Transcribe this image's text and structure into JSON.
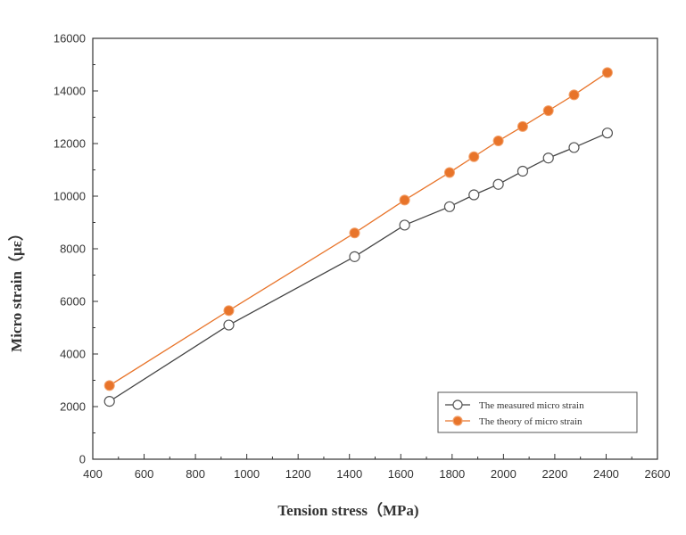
{
  "chart_data": {
    "type": "line",
    "xlabel": "Tension stress（MPa)",
    "ylabel": "Micro strain（με）",
    "xlim": [
      400,
      2600
    ],
    "ylim": [
      0,
      16000
    ],
    "x_ticks": [
      400,
      600,
      800,
      1000,
      1200,
      1400,
      1600,
      1800,
      2000,
      2200,
      2400,
      2600
    ],
    "y_ticks": [
      0,
      2000,
      4000,
      6000,
      8000,
      10000,
      12000,
      14000,
      16000
    ],
    "grid": false,
    "legend_position": "bottom-right",
    "series": [
      {
        "name": "The measured micro strain",
        "color": "#444444",
        "marker": "open-circle",
        "x": [
          465,
          930,
          1420,
          1615,
          1790,
          1885,
          1980,
          2075,
          2175,
          2275,
          2405
        ],
        "y": [
          2200,
          5100,
          7700,
          8900,
          9600,
          10050,
          10450,
          10950,
          11450,
          11850,
          12400
        ]
      },
      {
        "name": "The theory of micro strain",
        "color": "#e8742a",
        "marker": "filled-circle",
        "x": [
          465,
          930,
          1420,
          1615,
          1790,
          1885,
          1980,
          2075,
          2175,
          2275,
          2405
        ],
        "y": [
          2800,
          5650,
          8600,
          9850,
          10900,
          11500,
          12100,
          12650,
          13250,
          13850,
          14700
        ]
      }
    ]
  }
}
